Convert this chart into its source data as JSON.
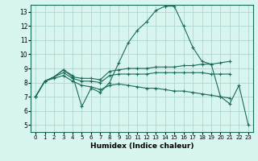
{
  "xlabel": "Humidex (Indice chaleur)",
  "bg_color": "#d8f5f0",
  "grid_color": "#aed8d0",
  "line_color": "#1a6b5a",
  "xlim": [
    -0.5,
    23.5
  ],
  "ylim": [
    4.5,
    13.5
  ],
  "xticks": [
    0,
    1,
    2,
    3,
    4,
    5,
    6,
    7,
    8,
    9,
    10,
    11,
    12,
    13,
    14,
    15,
    16,
    17,
    18,
    19,
    20,
    21,
    22,
    23
  ],
  "yticks": [
    5,
    6,
    7,
    8,
    9,
    10,
    11,
    12,
    13
  ],
  "lines": [
    {
      "x": [
        0,
        1,
        2,
        3,
        4,
        5,
        6,
        7,
        8,
        9,
        10,
        11,
        12,
        13,
        14,
        15,
        16,
        17,
        18,
        19,
        20,
        21,
        22,
        23
      ],
      "y": [
        7.0,
        8.1,
        8.4,
        8.9,
        8.5,
        6.3,
        7.6,
        7.3,
        8.0,
        9.4,
        10.8,
        11.7,
        12.3,
        13.1,
        13.4,
        13.4,
        12.0,
        10.5,
        9.5,
        9.3,
        7.0,
        6.5,
        7.8,
        5.0
      ]
    },
    {
      "x": [
        0,
        1,
        2,
        3,
        4,
        5,
        6,
        7,
        8,
        9,
        10,
        11,
        12,
        13,
        14,
        15,
        16,
        17,
        18,
        19,
        20,
        21
      ],
      "y": [
        7.0,
        8.1,
        8.4,
        8.9,
        8.4,
        8.3,
        8.3,
        8.2,
        8.8,
        8.9,
        9.0,
        9.0,
        9.0,
        9.1,
        9.1,
        9.1,
        9.2,
        9.2,
        9.3,
        9.3,
        9.4,
        9.5
      ]
    },
    {
      "x": [
        0,
        1,
        2,
        3,
        4,
        5,
        6,
        7,
        8,
        9,
        10,
        11,
        12,
        13,
        14,
        15,
        16,
        17,
        18,
        19,
        20,
        21
      ],
      "y": [
        7.0,
        8.1,
        8.4,
        8.7,
        8.3,
        8.1,
        8.1,
        8.0,
        8.5,
        8.6,
        8.6,
        8.6,
        8.6,
        8.7,
        8.7,
        8.7,
        8.7,
        8.7,
        8.7,
        8.6,
        8.6,
        8.6
      ]
    },
    {
      "x": [
        0,
        1,
        2,
        3,
        4,
        5,
        6,
        7,
        8,
        9,
        10,
        11,
        12,
        13,
        14,
        15,
        16,
        17,
        18,
        19,
        20,
        21
      ],
      "y": [
        7.0,
        8.1,
        8.3,
        8.5,
        8.1,
        7.8,
        7.7,
        7.5,
        7.8,
        7.9,
        7.8,
        7.7,
        7.6,
        7.6,
        7.5,
        7.4,
        7.4,
        7.3,
        7.2,
        7.1,
        7.0,
        6.9
      ]
    }
  ]
}
